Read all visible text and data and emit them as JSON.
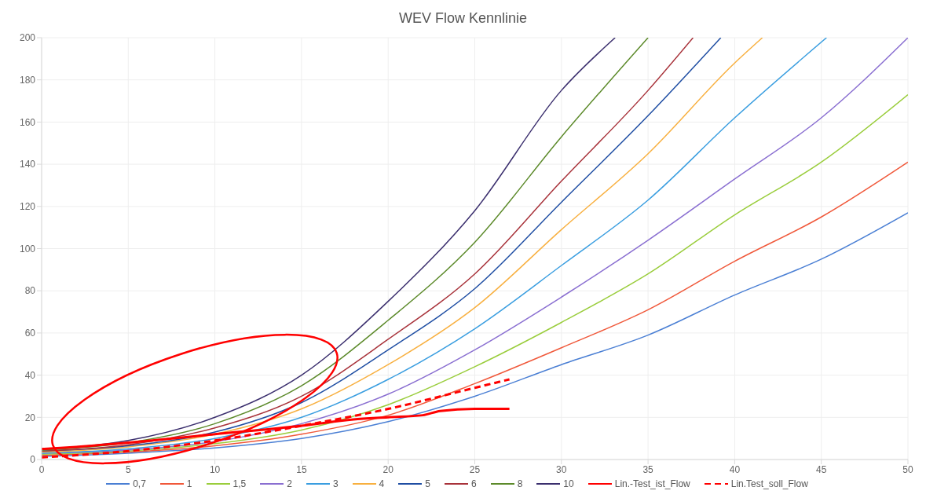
{
  "chart_data": {
    "type": "line",
    "title": "WEV Flow Kennlinie",
    "xlim": [
      0,
      50
    ],
    "xticks": [
      0,
      5,
      10,
      15,
      20,
      25,
      30,
      35,
      40,
      45,
      50
    ],
    "ylim": [
      0,
      200
    ],
    "yticks": [
      0,
      20,
      40,
      60,
      80,
      100,
      120,
      140,
      160,
      180,
      200
    ],
    "grid": true,
    "legend": "bottom",
    "marker": "none",
    "series": [
      {
        "name": "0,7",
        "color": "#4a7fd4",
        "x": [
          0,
          5,
          10,
          15,
          20,
          25,
          30,
          35,
          40,
          45,
          50
        ],
        "values": [
          1.5,
          3,
          5.5,
          10,
          18,
          30,
          45,
          59,
          78,
          95,
          117
        ]
      },
      {
        "name": "1",
        "color": "#f0583a",
        "x": [
          0,
          5,
          10,
          15,
          20,
          25,
          30,
          35,
          40,
          45,
          50
        ],
        "values": [
          2,
          3.5,
          6.5,
          12,
          21,
          36,
          53,
          71,
          94,
          115,
          141
        ]
      },
      {
        "name": "1,5",
        "color": "#9acd3c",
        "x": [
          0,
          5,
          10,
          15,
          20,
          25,
          30,
          35,
          40,
          45,
          50
        ],
        "values": [
          2.5,
          4,
          7.5,
          14,
          26,
          44,
          65,
          88,
          116,
          141,
          173
        ]
      },
      {
        "name": "2",
        "color": "#8a6fd1",
        "x": [
          0,
          5,
          10,
          15,
          20,
          25,
          30,
          35,
          40,
          45,
          50
        ],
        "values": [
          3,
          4.5,
          8.5,
          17,
          31,
          52,
          77,
          104,
          133,
          162,
          200
        ]
      },
      {
        "name": "3",
        "color": "#3a9ee0",
        "x": [
          0,
          5,
          10,
          15,
          20,
          25,
          30,
          35,
          40,
          45.3
        ],
        "values": [
          3,
          5,
          10,
          20,
          38,
          62,
          92,
          123,
          162,
          200
        ]
      },
      {
        "name": "4",
        "color": "#f8b040",
        "x": [
          0,
          5,
          10,
          15,
          20,
          25,
          30,
          35,
          40,
          41.6
        ],
        "values": [
          3.5,
          6,
          12,
          24,
          45,
          72,
          109,
          145,
          188,
          200
        ]
      },
      {
        "name": "5",
        "color": "#1f4ea3",
        "x": [
          0,
          5,
          10,
          15,
          20,
          25,
          30,
          35,
          39.2
        ],
        "values": [
          4,
          6.5,
          13,
          27,
          52,
          81,
          122,
          163,
          200
        ]
      },
      {
        "name": "6",
        "color": "#a8323a",
        "x": [
          0,
          5,
          10,
          15,
          20,
          25,
          30,
          35,
          37.6
        ],
        "values": [
          4,
          7,
          15,
          30,
          57,
          88,
          132,
          175,
          200
        ]
      },
      {
        "name": "8",
        "color": "#5c8a2a",
        "x": [
          0,
          5,
          10,
          15,
          20,
          25,
          30,
          35
        ],
        "values": [
          4.5,
          8,
          17,
          35,
          66,
          103,
          153,
          200
        ]
      },
      {
        "name": "10",
        "color": "#3b2f6e",
        "x": [
          0,
          5,
          10,
          15,
          20,
          25,
          30,
          33.1
        ],
        "values": [
          5,
          9,
          20,
          40,
          75,
          118,
          175,
          200
        ]
      },
      {
        "name": "Lin.-Test_ist_Flow",
        "color": "#ff0000",
        "line_style": "solid",
        "x": [
          0,
          2,
          5,
          10,
          15,
          18,
          20,
          22,
          23,
          25,
          27
        ],
        "values": [
          5,
          6,
          8,
          12,
          16,
          19,
          20,
          21,
          23,
          24,
          24
        ]
      },
      {
        "name": "Lin.Test_soll_Flow",
        "color": "#ff0000",
        "line_style": "dashed",
        "x": [
          0,
          5,
          10,
          15,
          20,
          25,
          27
        ],
        "values": [
          1,
          4,
          9,
          16,
          24,
          34,
          38
        ]
      }
    ]
  }
}
